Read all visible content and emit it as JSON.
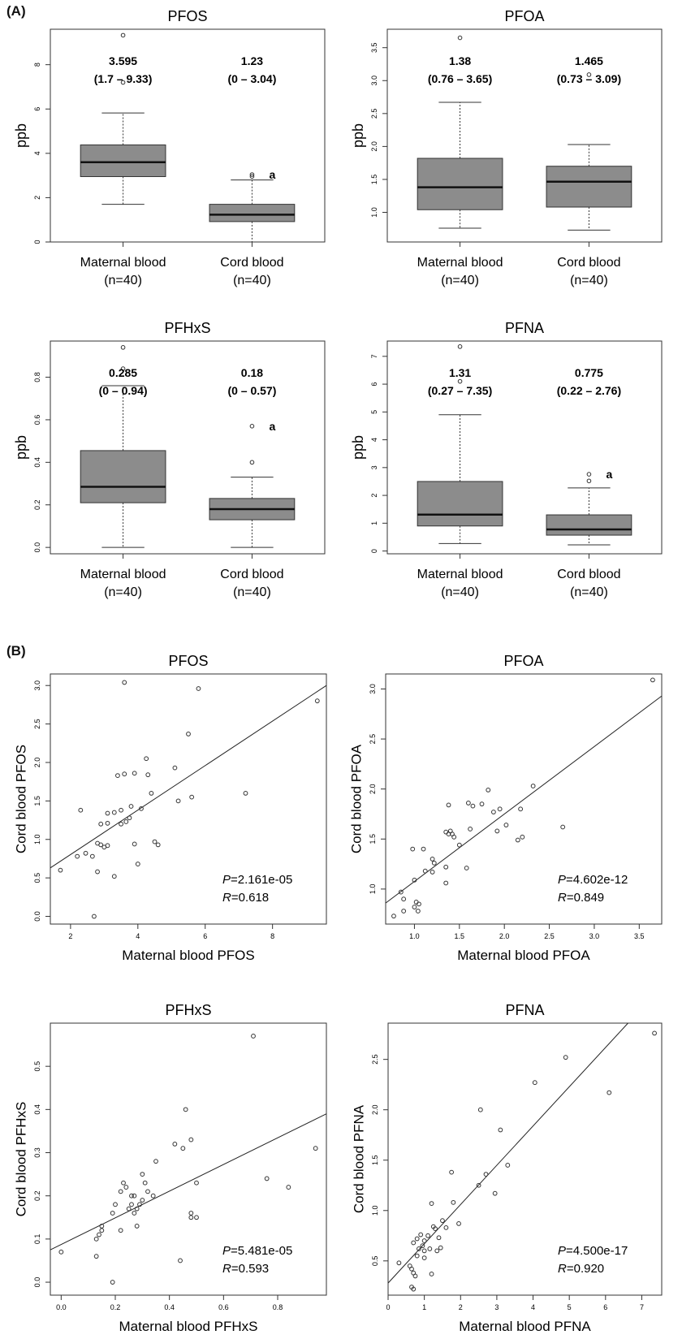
{
  "panel_labels": {
    "a": "(A)",
    "b": "(B)"
  },
  "chart_data": [
    {
      "type": "box",
      "title": "PFOS",
      "ylabel": "ppb",
      "ylim": [
        0,
        9.6
      ],
      "yticks": [
        "0",
        "2",
        "4",
        "6",
        "8"
      ],
      "categories": [
        "Maternal blood\n(n=40)",
        "Cord blood\n(n=40)"
      ],
      "boxes": [
        {
          "whisker_low": 1.7,
          "q1": 2.95,
          "median": 3.6,
          "q3": 4.38,
          "whisker_high": 5.82,
          "outliers": [
            9.33,
            7.2
          ],
          "median_text": "3.595",
          "range_text": "(1.7 – 9.33)",
          "sig": ""
        },
        {
          "whisker_low": 0,
          "q1": 0.92,
          "median": 1.23,
          "q3": 1.7,
          "whisker_high": 2.8,
          "outliers": [
            3.04,
            2.96
          ],
          "median_text": "1.23",
          "range_text": "(0 – 3.04)",
          "sig": "a"
        }
      ]
    },
    {
      "type": "box",
      "title": "PFOA",
      "ylabel": "ppb",
      "ylim": [
        0.55,
        3.78
      ],
      "yticks": [
        "1.0",
        "1.5",
        "2.0",
        "2.5",
        "3.0",
        "3.5"
      ],
      "categories": [
        "Maternal blood\n(n=40)",
        "Cord blood\n(n=40)"
      ],
      "boxes": [
        {
          "whisker_low": 0.76,
          "q1": 1.04,
          "median": 1.38,
          "q3": 1.82,
          "whisker_high": 2.67,
          "outliers": [
            3.65
          ],
          "median_text": "1.38",
          "range_text": "(0.76 – 3.65)",
          "sig": ""
        },
        {
          "whisker_low": 0.73,
          "q1": 1.08,
          "median": 1.465,
          "q3": 1.7,
          "whisker_high": 2.03,
          "outliers": [
            3.09
          ],
          "median_text": "1.465",
          "range_text": "(0.73 – 3.09)",
          "sig": ""
        }
      ]
    },
    {
      "type": "box",
      "title": "PFHxS",
      "ylabel": "ppb",
      "ylim": [
        -0.03,
        0.97
      ],
      "yticks": [
        "0.0",
        "0.2",
        "0.4",
        "0.6",
        "0.8"
      ],
      "categories": [
        "Maternal blood\n(n=40)",
        "Cord blood\n(n=40)"
      ],
      "boxes": [
        {
          "whisker_low": 0,
          "q1": 0.21,
          "median": 0.285,
          "q3": 0.455,
          "whisker_high": 0.76,
          "outliers": [
            0.94,
            0.84
          ],
          "median_text": "0.285",
          "range_text": "(0 – 0.94)",
          "sig": ""
        },
        {
          "whisker_low": 0,
          "q1": 0.13,
          "median": 0.18,
          "q3": 0.23,
          "whisker_high": 0.33,
          "outliers": [
            0.57,
            0.4
          ],
          "median_text": "0.18",
          "range_text": "(0 – 0.57)",
          "sig": "a"
        }
      ]
    },
    {
      "type": "box",
      "title": "PFNA",
      "ylabel": "ppb",
      "ylim": [
        -0.1,
        7.55
      ],
      "yticks": [
        "0",
        "1",
        "2",
        "3",
        "4",
        "5",
        "6",
        "7"
      ],
      "categories": [
        "Maternal blood\n(n=40)",
        "Cord blood\n(n=40)"
      ],
      "boxes": [
        {
          "whisker_low": 0.27,
          "q1": 0.9,
          "median": 1.31,
          "q3": 2.5,
          "whisker_high": 4.9,
          "outliers": [
            7.35,
            6.1
          ],
          "median_text": "1.31",
          "range_text": "(0.27 – 7.35)",
          "sig": ""
        },
        {
          "whisker_low": 0.22,
          "q1": 0.57,
          "median": 0.775,
          "q3": 1.3,
          "whisker_high": 2.27,
          "outliers": [
            2.76,
            2.52
          ],
          "median_text": "0.775",
          "range_text": "(0.22 – 2.76)",
          "sig": "a"
        }
      ]
    },
    {
      "type": "scatter",
      "title": "PFOS",
      "xlabel": "Maternal blood PFOS",
      "ylabel": "Cord blood PFOS",
      "xlim": [
        1.4,
        9.6
      ],
      "ylim": [
        -0.1,
        3.15
      ],
      "xticks": [
        "2",
        "4",
        "6",
        "8"
      ],
      "yticks": [
        "0.0",
        "0.5",
        "1.0",
        "1.5",
        "2.0",
        "2.5",
        "3.0"
      ],
      "fit_line": [
        [
          1.4,
          0.63
        ],
        [
          9.6,
          3.0
        ]
      ],
      "p_label": "P",
      "p_value": "=2.161e-05",
      "r_label": "R",
      "r_value": "=0.618",
      "points": [
        [
          3.6,
          3.04
        ],
        [
          5.8,
          2.96
        ],
        [
          9.33,
          2.8
        ],
        [
          5.5,
          2.37
        ],
        [
          4.25,
          2.05
        ],
        [
          5.1,
          1.93
        ],
        [
          4.3,
          1.84
        ],
        [
          3.4,
          1.83
        ],
        [
          3.6,
          1.85
        ],
        [
          3.9,
          1.86
        ],
        [
          5.6,
          1.55
        ],
        [
          7.2,
          1.6
        ],
        [
          4.4,
          1.6
        ],
        [
          5.2,
          1.5
        ],
        [
          3.8,
          1.43
        ],
        [
          3.5,
          1.38
        ],
        [
          2.3,
          1.38
        ],
        [
          3.1,
          1.34
        ],
        [
          3.3,
          1.35
        ],
        [
          4.1,
          1.4
        ],
        [
          2.9,
          1.2
        ],
        [
          3.1,
          1.21
        ],
        [
          3.5,
          1.2
        ],
        [
          3.65,
          1.23
        ],
        [
          3.75,
          1.28
        ],
        [
          2.45,
          0.82
        ],
        [
          2.65,
          0.78
        ],
        [
          2.8,
          0.95
        ],
        [
          2.9,
          0.93
        ],
        [
          3.0,
          0.9
        ],
        [
          3.1,
          0.92
        ],
        [
          4.5,
          0.97
        ],
        [
          4.6,
          0.93
        ],
        [
          3.9,
          0.94
        ],
        [
          2.2,
          0.78
        ],
        [
          2.8,
          0.58
        ],
        [
          3.3,
          0.52
        ],
        [
          4.0,
          0.68
        ],
        [
          1.7,
          0.6
        ],
        [
          2.7,
          0.0
        ]
      ]
    },
    {
      "type": "scatter",
      "title": "PFOA",
      "xlabel": "Maternal blood PFOA",
      "ylabel": "Cord blood PFOA",
      "xlim": [
        0.68,
        3.75
      ],
      "ylim": [
        0.65,
        3.15
      ],
      "xticks": [
        "1.0",
        "1.5",
        "2.0",
        "2.5",
        "3.0",
        "3.5"
      ],
      "yticks": [
        "1.0",
        "1.5",
        "2.0",
        "2.5",
        "3.0"
      ],
      "fit_line": [
        [
          0.68,
          0.86
        ],
        [
          3.75,
          2.93
        ]
      ],
      "p_label": "P",
      "p_value": "=4.602e-12",
      "r_label": "R",
      "r_value": "=0.849",
      "points": [
        [
          3.65,
          3.09
        ],
        [
          2.32,
          2.03
        ],
        [
          1.82,
          1.99
        ],
        [
          2.65,
          1.62
        ],
        [
          1.6,
          1.86
        ],
        [
          1.75,
          1.85
        ],
        [
          1.38,
          1.84
        ],
        [
          1.95,
          1.8
        ],
        [
          1.88,
          1.77
        ],
        [
          1.65,
          1.83
        ],
        [
          2.18,
          1.8
        ],
        [
          2.02,
          1.64
        ],
        [
          1.62,
          1.6
        ],
        [
          1.38,
          1.55
        ],
        [
          1.42,
          1.55
        ],
        [
          1.35,
          1.57
        ],
        [
          1.44,
          1.52
        ],
        [
          1.5,
          1.44
        ],
        [
          2.2,
          1.52
        ],
        [
          2.15,
          1.49
        ],
        [
          1.2,
          1.3
        ],
        [
          1.22,
          1.26
        ],
        [
          1.12,
          1.18
        ],
        [
          0.98,
          1.4
        ],
        [
          1.1,
          1.4
        ],
        [
          1.92,
          1.58
        ],
        [
          1.58,
          1.21
        ],
        [
          1.35,
          1.22
        ],
        [
          1.2,
          1.17
        ],
        [
          1.35,
          1.06
        ],
        [
          1.0,
          1.09
        ],
        [
          1.02,
          0.87
        ],
        [
          1.05,
          0.85
        ],
        [
          0.85,
          0.97
        ],
        [
          0.88,
          0.9
        ],
        [
          0.88,
          0.78
        ],
        [
          0.77,
          0.73
        ],
        [
          1.0,
          0.82
        ],
        [
          1.04,
          0.78
        ],
        [
          1.4,
          1.58
        ]
      ]
    },
    {
      "type": "scatter",
      "title": "PFHxS",
      "xlabel": "Maternal blood PFHxS",
      "ylabel": "Cord blood PFHxS",
      "xlim": [
        -0.04,
        0.98
      ],
      "ylim": [
        -0.03,
        0.6
      ],
      "xticks": [
        "0.0",
        "0.2",
        "0.4",
        "0.6",
        "0.8"
      ],
      "yticks": [
        "0.0",
        "0.1",
        "0.2",
        "0.3",
        "0.4",
        "0.5"
      ],
      "fit_line": [
        [
          -0.04,
          0.075
        ],
        [
          0.98,
          0.39
        ]
      ],
      "p_label": "P",
      "p_value": "=5.481e-05",
      "r_label": "R",
      "r_value": "=0.593",
      "points": [
        [
          0.71,
          0.57
        ],
        [
          0.46,
          0.4
        ],
        [
          0.48,
          0.33
        ],
        [
          0.42,
          0.32
        ],
        [
          0.45,
          0.31
        ],
        [
          0.94,
          0.31
        ],
        [
          0.35,
          0.28
        ],
        [
          0.3,
          0.25
        ],
        [
          0.23,
          0.23
        ],
        [
          0.24,
          0.22
        ],
        [
          0.27,
          0.2
        ],
        [
          0.22,
          0.21
        ],
        [
          0.26,
          0.2
        ],
        [
          0.29,
          0.18
        ],
        [
          0.3,
          0.19
        ],
        [
          0.34,
          0.2
        ],
        [
          0.31,
          0.23
        ],
        [
          0.2,
          0.18
        ],
        [
          0.19,
          0.16
        ],
        [
          0.25,
          0.17
        ],
        [
          0.26,
          0.18
        ],
        [
          0.28,
          0.17
        ],
        [
          0.27,
          0.16
        ],
        [
          0.32,
          0.21
        ],
        [
          0.5,
          0.23
        ],
        [
          0.48,
          0.16
        ],
        [
          0.48,
          0.15
        ],
        [
          0.5,
          0.15
        ],
        [
          0.76,
          0.24
        ],
        [
          0.84,
          0.22
        ],
        [
          0.13,
          0.1
        ],
        [
          0.14,
          0.11
        ],
        [
          0.15,
          0.13
        ],
        [
          0.15,
          0.12
        ],
        [
          0.22,
          0.12
        ],
        [
          0.28,
          0.13
        ],
        [
          0.13,
          0.06
        ],
        [
          0.44,
          0.05
        ],
        [
          0.0,
          0.07
        ],
        [
          0.19,
          0.0
        ]
      ]
    },
    {
      "type": "scatter",
      "title": "PFNA",
      "xlabel": "Maternal blood PFNA",
      "ylabel": "Cord blood PFNA",
      "xlim": [
        0.0,
        7.55
      ],
      "ylim": [
        0.16,
        2.86
      ],
      "xticks": [
        "0",
        "1",
        "2",
        "3",
        "4",
        "5",
        "6",
        "7"
      ],
      "yticks": [
        "0.5",
        "1.0",
        "1.5",
        "2.0",
        "2.5"
      ],
      "fit_line": [
        [
          0.0,
          0.28
        ],
        [
          6.62,
          2.86
        ]
      ],
      "p_label": "P",
      "p_value": "=4.500e-17",
      "r_label": "R",
      "r_value": "=0.920",
      "points": [
        [
          7.35,
          2.76
        ],
        [
          4.9,
          2.52
        ],
        [
          4.05,
          2.27
        ],
        [
          6.1,
          2.17
        ],
        [
          2.55,
          2.0
        ],
        [
          3.1,
          1.8
        ],
        [
          3.3,
          1.45
        ],
        [
          1.75,
          1.38
        ],
        [
          2.7,
          1.36
        ],
        [
          2.95,
          1.17
        ],
        [
          2.5,
          1.25
        ],
        [
          1.8,
          1.08
        ],
        [
          1.2,
          1.07
        ],
        [
          1.95,
          0.87
        ],
        [
          1.5,
          0.9
        ],
        [
          1.3,
          0.82
        ],
        [
          1.4,
          0.73
        ],
        [
          1.6,
          0.83
        ],
        [
          1.1,
          0.75
        ],
        [
          0.9,
          0.76
        ],
        [
          1.0,
          0.7
        ],
        [
          0.8,
          0.72
        ],
        [
          0.7,
          0.68
        ],
        [
          0.85,
          0.62
        ],
        [
          1.0,
          0.6
        ],
        [
          1.15,
          0.62
        ],
        [
          1.35,
          0.6
        ],
        [
          1.45,
          0.63
        ],
        [
          1.0,
          0.53
        ],
        [
          0.8,
          0.55
        ],
        [
          0.6,
          0.45
        ],
        [
          0.65,
          0.42
        ],
        [
          0.7,
          0.38
        ],
        [
          0.75,
          0.35
        ],
        [
          1.2,
          0.37
        ],
        [
          0.3,
          0.48
        ],
        [
          0.65,
          0.24
        ],
        [
          0.7,
          0.22
        ],
        [
          0.95,
          0.65
        ],
        [
          1.25,
          0.84
        ]
      ]
    }
  ]
}
